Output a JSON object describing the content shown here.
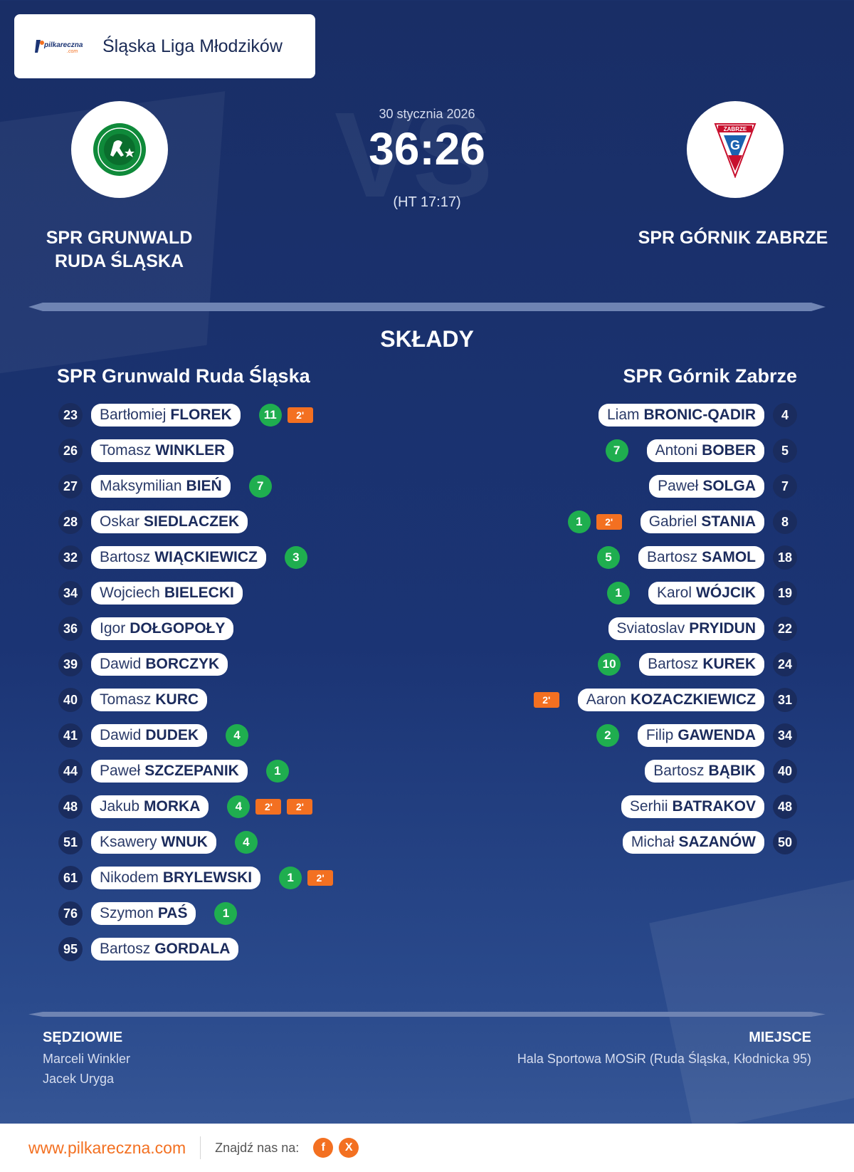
{
  "league": {
    "title": "Śląska Liga Młodzików",
    "logo_text": "pilkareczna",
    "logo_suffix": ".com"
  },
  "match": {
    "date": "30 stycznia 2026",
    "score": "36:26",
    "halftime": "(HT 17:17)",
    "vs_bg": "VS"
  },
  "home": {
    "name_line1": "SPR GRUNWALD",
    "name_line2": "RUDA ŚLĄSKA",
    "logo_icon": "grunwald-crest-icon"
  },
  "away": {
    "name": "SPR GÓRNIK ZABRZE",
    "logo_icon": "gornik-crest-icon",
    "crest_text": "ZABRZE"
  },
  "lineups": {
    "heading": "SKŁADY",
    "home_heading": "SPR Grunwald Ruda Śląska",
    "away_heading": "SPR Górnik Zabrze",
    "home_players": [
      {
        "num": "23",
        "first": "Bartłomiej",
        "last": "FLOREK",
        "goals": "11",
        "susp": [
          "2'"
        ]
      },
      {
        "num": "26",
        "first": "Tomasz",
        "last": "WINKLER",
        "goals": "",
        "susp": []
      },
      {
        "num": "27",
        "first": "Maksymilian",
        "last": "BIEŃ",
        "goals": "7",
        "susp": []
      },
      {
        "num": "28",
        "first": "Oskar",
        "last": "SIEDLACZEK",
        "goals": "",
        "susp": []
      },
      {
        "num": "32",
        "first": "Bartosz",
        "last": "WIĄCKIEWICZ",
        "goals": "3",
        "susp": []
      },
      {
        "num": "34",
        "first": "Wojciech",
        "last": "BIELECKI",
        "goals": "",
        "susp": []
      },
      {
        "num": "36",
        "first": "Igor",
        "last": "DOŁGOPOŁY",
        "goals": "",
        "susp": []
      },
      {
        "num": "39",
        "first": "Dawid",
        "last": "BORCZYK",
        "goals": "",
        "susp": []
      },
      {
        "num": "40",
        "first": "Tomasz",
        "last": "KURC",
        "goals": "",
        "susp": []
      },
      {
        "num": "41",
        "first": "Dawid",
        "last": "DUDEK",
        "goals": "4",
        "susp": []
      },
      {
        "num": "44",
        "first": "Paweł",
        "last": "SZCZEPANIK",
        "goals": "1",
        "susp": []
      },
      {
        "num": "48",
        "first": "Jakub",
        "last": "MORKA",
        "goals": "4",
        "susp": [
          "2'",
          "2'"
        ]
      },
      {
        "num": "51",
        "first": "Ksawery",
        "last": "WNUK",
        "goals": "4",
        "susp": []
      },
      {
        "num": "61",
        "first": "Nikodem",
        "last": "BRYLEWSKI",
        "goals": "1",
        "susp": [
          "2'"
        ]
      },
      {
        "num": "76",
        "first": "Szymon",
        "last": "PAŚ",
        "goals": "1",
        "susp": []
      },
      {
        "num": "95",
        "first": "Bartosz",
        "last": "GORDALA",
        "goals": "",
        "susp": []
      }
    ],
    "away_players": [
      {
        "num": "4",
        "first": "Liam",
        "last": "BRONIC-QADIR",
        "goals": "",
        "susp": []
      },
      {
        "num": "5",
        "first": "Antoni",
        "last": "BOBER",
        "goals": "7",
        "susp": []
      },
      {
        "num": "7",
        "first": "Paweł",
        "last": "SOLGA",
        "goals": "",
        "susp": []
      },
      {
        "num": "8",
        "first": "Gabriel",
        "last": "STANIA",
        "goals": "1",
        "susp": [
          "2'"
        ]
      },
      {
        "num": "18",
        "first": "Bartosz",
        "last": "SAMOL",
        "goals": "5",
        "susp": []
      },
      {
        "num": "19",
        "first": "Karol",
        "last": "WÓJCIK",
        "goals": "1",
        "susp": []
      },
      {
        "num": "22",
        "first": "Sviatoslav",
        "last": "PRYIDUN",
        "goals": "",
        "susp": []
      },
      {
        "num": "24",
        "first": "Bartosz",
        "last": "KUREK",
        "goals": "10",
        "susp": []
      },
      {
        "num": "31",
        "first": "Aaron",
        "last": "KOZACZKIEWICZ",
        "goals": "",
        "susp": [
          "2'"
        ]
      },
      {
        "num": "34",
        "first": "Filip",
        "last": "GAWENDA",
        "goals": "2",
        "susp": []
      },
      {
        "num": "40",
        "first": "Bartosz",
        "last": "BĄBIK",
        "goals": "",
        "susp": []
      },
      {
        "num": "48",
        "first": "Serhii",
        "last": "BATRAKOV",
        "goals": "",
        "susp": []
      },
      {
        "num": "50",
        "first": "Michał",
        "last": "SAZANÓW",
        "goals": "",
        "susp": []
      }
    ]
  },
  "referees": {
    "title": "SĘDZIOWIE",
    "names": [
      "Marceli Winkler",
      "Jacek Uryga"
    ]
  },
  "venue": {
    "title": "MIEJSCE",
    "name": "Hala Sportowa MOSiR (Ruda Śląska, Kłodnicka 95)"
  },
  "footer": {
    "url": "www.pilkareczna.com",
    "find_us": "Znajdź nas na:",
    "social": [
      {
        "icon": "facebook-icon",
        "glyph": "f"
      },
      {
        "icon": "x-icon",
        "glyph": "X"
      }
    ]
  },
  "colors": {
    "background": "#1b3474",
    "goal": "#1fae4f",
    "suspension": "#f37021",
    "accent": "#f37021"
  }
}
